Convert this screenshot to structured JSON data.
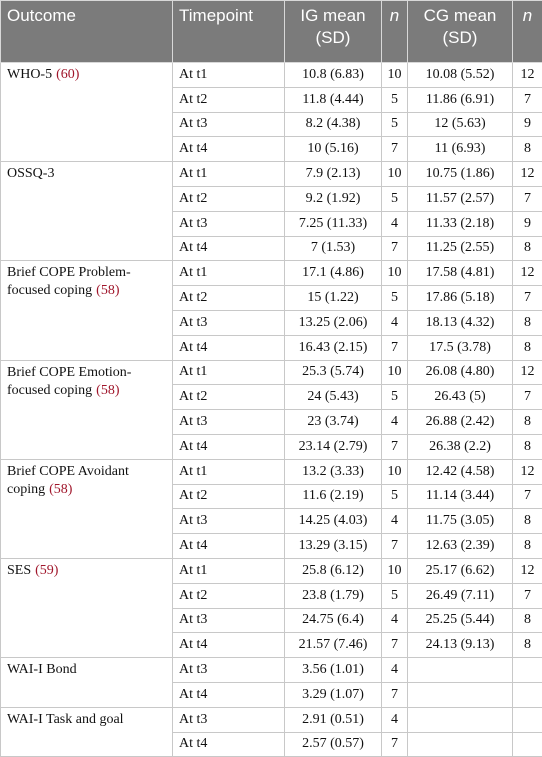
{
  "table": {
    "headers": [
      "Outcome",
      "Timepoint",
      "IG mean (SD)",
      "n",
      "CG mean (SD)",
      "n"
    ],
    "groups": [
      {
        "outcome": "WHO-5",
        "ref": "(60)",
        "rows": [
          [
            "At t1",
            "10.8 (6.83)",
            10,
            "10.08 (5.52)",
            12
          ],
          [
            "At t2",
            "11.8 (4.44)",
            5,
            "11.86 (6.91)",
            7
          ],
          [
            "At t3",
            "8.2 (4.38)",
            5,
            "12 (5.63)",
            9
          ],
          [
            "At t4",
            "10 (5.16)",
            7,
            "11 (6.93)",
            8
          ]
        ]
      },
      {
        "outcome": "OSSQ-3",
        "rows": [
          [
            "At t1",
            "7.9 (2.13)",
            10,
            "10.75 (1.86)",
            12
          ],
          [
            "At t2",
            "9.2 (1.92)",
            5,
            "11.57 (2.57)",
            7
          ],
          [
            "At t3",
            "7.25 (11.33)",
            4,
            "11.33 (2.18)",
            9
          ],
          [
            "At t4",
            "7 (1.53)",
            7,
            "11.25 (2.55)",
            8
          ]
        ]
      },
      {
        "outcome": "Brief COPE Problem-focused coping",
        "ref": "(58)",
        "rows": [
          [
            "At t1",
            "17.1 (4.86)",
            10,
            "17.58 (4.81)",
            12
          ],
          [
            "At t2",
            "15 (1.22)",
            5,
            "17.86 (5.18)",
            7
          ],
          [
            "At t3",
            "13.25 (2.06)",
            4,
            "18.13 (4.32)",
            8
          ],
          [
            "At t4",
            "16.43 (2.15)",
            7,
            "17.5 (3.78)",
            8
          ]
        ]
      },
      {
        "outcome": "Brief COPE Emotion-focused coping",
        "ref": "(58)",
        "rows": [
          [
            "At t1",
            "25.3 (5.74)",
            10,
            "26.08 (4.80)",
            12
          ],
          [
            "At t2",
            "24 (5.43)",
            5,
            "26.43 (5)",
            7
          ],
          [
            "At t3",
            "23 (3.74)",
            4,
            "26.88 (2.42)",
            8
          ],
          [
            "At t4",
            "23.14 (2.79)",
            7,
            "26.38 (2.2)",
            8
          ]
        ]
      },
      {
        "outcome": "Brief COPE Avoidant coping",
        "ref": "(58)",
        "rows": [
          [
            "At t1",
            "13.2 (3.33)",
            10,
            "12.42 (4.58)",
            12
          ],
          [
            "At t2",
            "11.6 (2.19)",
            5,
            "11.14 (3.44)",
            7
          ],
          [
            "At t3",
            "14.25 (4.03)",
            4,
            "11.75 (3.05)",
            8
          ],
          [
            "At t4",
            "13.29 (3.15)",
            7,
            "12.63 (2.39)",
            8
          ]
        ]
      },
      {
        "outcome": "SES",
        "ref": "(59)",
        "rows": [
          [
            "At t1",
            "25.8 (6.12)",
            10,
            "25.17 (6.62)",
            12
          ],
          [
            "At t2",
            "23.8 (1.79)",
            5,
            "26.49 (7.11)",
            7
          ],
          [
            "At t3",
            "24.75 (6.4)",
            4,
            "25.25 (5.44)",
            8
          ],
          [
            "At t4",
            "21.57 (7.46)",
            7,
            "24.13 (9.13)",
            8
          ]
        ]
      },
      {
        "outcome": "WAI-I Bond",
        "rows": [
          [
            "At t3",
            "3.56 (1.01)",
            4,
            null,
            null
          ],
          [
            "At t4",
            "3.29 (1.07)",
            7,
            null,
            null
          ]
        ]
      },
      {
        "outcome": "WAI-I Task and goal",
        "rows": [
          [
            "At t3",
            "2.91 (0.51)",
            4,
            null,
            null
          ],
          [
            "At t4",
            "2.57 (0.57)",
            7,
            null,
            null
          ]
        ]
      }
    ]
  }
}
